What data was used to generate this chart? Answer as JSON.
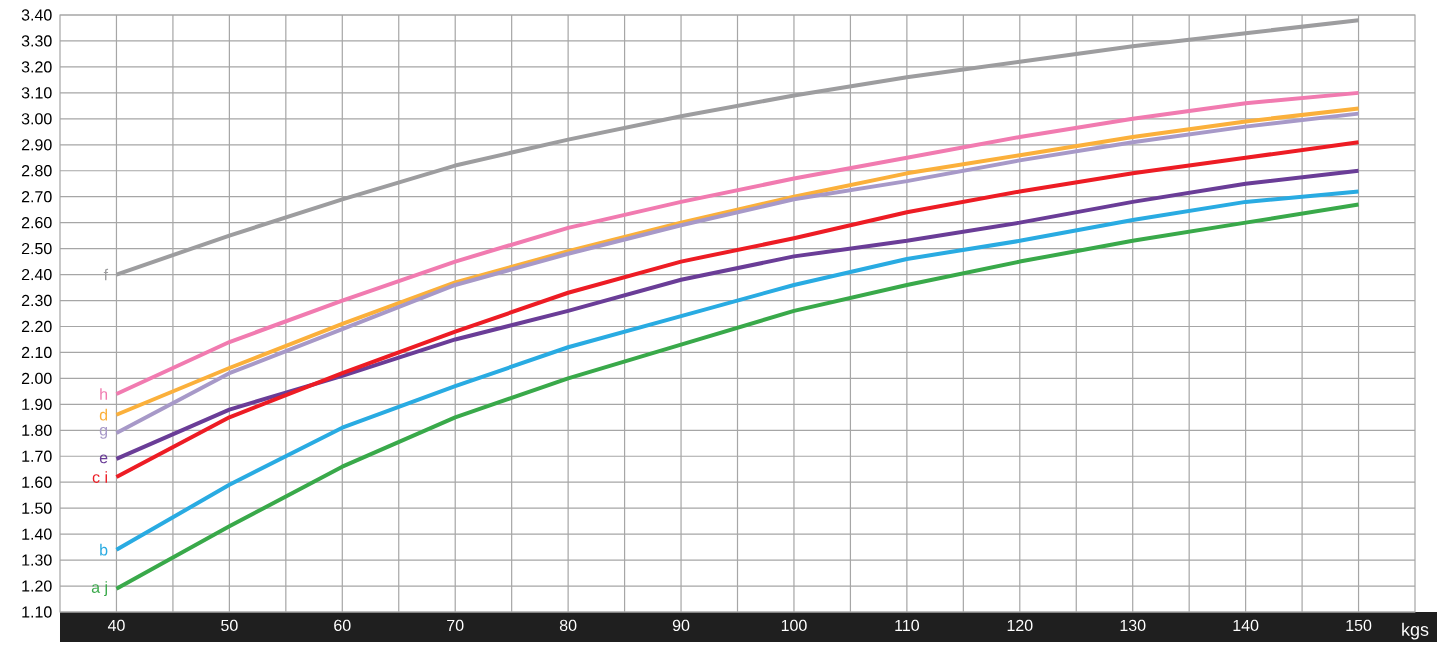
{
  "chart_data": {
    "type": "line",
    "xlabel": "kgs",
    "x": [
      40,
      50,
      60,
      70,
      80,
      90,
      100,
      110,
      120,
      130,
      140,
      150
    ],
    "series": [
      {
        "name": "f",
        "color": "#9d9d9f",
        "values": [
          2.4,
          2.55,
          2.69,
          2.82,
          2.92,
          3.01,
          3.09,
          3.16,
          3.22,
          3.28,
          3.33,
          3.38
        ]
      },
      {
        "name": "h",
        "color": "#f17bb0",
        "values": [
          1.94,
          2.14,
          2.3,
          2.45,
          2.58,
          2.68,
          2.77,
          2.85,
          2.93,
          3.0,
          3.06,
          3.1
        ]
      },
      {
        "name": "d",
        "color": "#fbb03b",
        "values": [
          1.86,
          2.04,
          2.21,
          2.37,
          2.49,
          2.6,
          2.7,
          2.79,
          2.86,
          2.93,
          2.99,
          3.04
        ]
      },
      {
        "name": "g",
        "color": "#a799c8",
        "values": [
          1.79,
          2.02,
          2.19,
          2.36,
          2.48,
          2.59,
          2.69,
          2.76,
          2.84,
          2.91,
          2.97,
          3.02
        ]
      },
      {
        "name": "e",
        "color": "#6a3d97",
        "values": [
          1.69,
          1.88,
          2.01,
          2.15,
          2.26,
          2.38,
          2.47,
          2.53,
          2.6,
          2.68,
          2.75,
          2.8
        ]
      },
      {
        "name": "c i",
        "color": "#ed1c24",
        "values": [
          1.62,
          1.85,
          2.02,
          2.18,
          2.33,
          2.45,
          2.54,
          2.64,
          2.72,
          2.79,
          2.85,
          2.91
        ]
      },
      {
        "name": "b",
        "color": "#29abe2",
        "values": [
          1.34,
          1.59,
          1.81,
          1.97,
          2.12,
          2.24,
          2.36,
          2.46,
          2.53,
          2.61,
          2.68,
          2.72
        ]
      },
      {
        "name": "a j",
        "color": "#39a94a",
        "values": [
          1.19,
          1.43,
          1.66,
          1.85,
          2.0,
          2.13,
          2.26,
          2.36,
          2.45,
          2.53,
          2.6,
          2.67
        ]
      }
    ],
    "xlim": [
      35,
      155
    ],
    "ylim": [
      1.1,
      3.4
    ],
    "xticks": [
      40,
      {
        "value": 45,
        "label": null
      },
      50,
      {
        "value": 55,
        "label": null
      },
      60,
      {
        "value": 65,
        "label": null
      },
      70,
      {
        "value": 75,
        "label": null
      },
      80,
      {
        "value": 85,
        "label": null
      },
      90,
      {
        "value": 95,
        "label": null
      },
      100,
      {
        "value": 105,
        "label": null
      },
      110,
      {
        "value": 115,
        "label": null
      },
      120,
      {
        "value": 125,
        "label": null
      },
      130,
      {
        "value": 135,
        "label": null
      },
      140,
      {
        "value": 145,
        "label": null
      },
      150
    ],
    "yticks": [
      {
        "value": 1.1,
        "label": "1.10"
      },
      {
        "value": 1.2,
        "label": "1.20"
      },
      {
        "value": 1.3,
        "label": "1.30"
      },
      {
        "value": 1.4,
        "label": "1.40"
      },
      {
        "value": 1.5,
        "label": "1.50"
      },
      {
        "value": 1.6,
        "label": "1.60"
      },
      {
        "value": 1.7,
        "label": "1.70"
      },
      {
        "value": 1.8,
        "label": "1.80"
      },
      {
        "value": 1.9,
        "label": "1.90"
      },
      {
        "value": 2.0,
        "label": "2.00"
      },
      {
        "value": 2.1,
        "label": "2.10"
      },
      {
        "value": 2.2,
        "label": "2.20"
      },
      {
        "value": 2.3,
        "label": "2.30"
      },
      {
        "value": 2.4,
        "label": "2.40"
      },
      {
        "value": 2.5,
        "label": "2.50"
      },
      {
        "value": 2.6,
        "label": "2.60"
      },
      {
        "value": 2.7,
        "label": "2.70"
      },
      {
        "value": 2.8,
        "label": "2.80"
      },
      {
        "value": 2.9,
        "label": "2.90"
      },
      {
        "value": 3.0,
        "label": "3.00"
      },
      {
        "value": 3.1,
        "label": "3.10"
      },
      {
        "value": 3.2,
        "label": "3.20"
      },
      {
        "value": 3.3,
        "label": "3.30"
      },
      {
        "value": 3.4,
        "label": "3.40"
      }
    ],
    "grid": true
  }
}
